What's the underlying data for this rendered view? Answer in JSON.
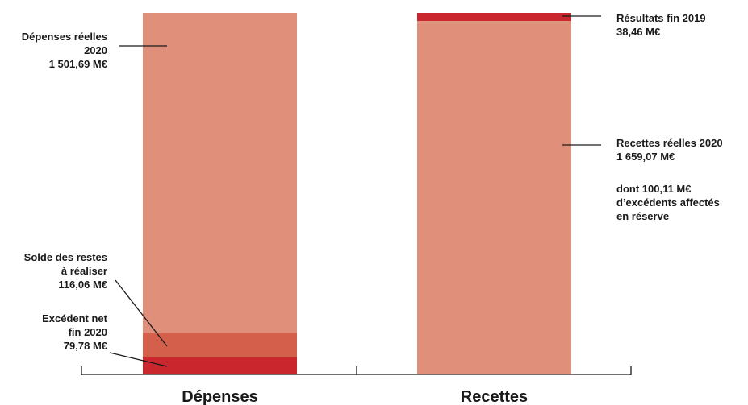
{
  "chart_data": {
    "type": "stacked-bar",
    "unit": "M€",
    "categories": [
      "Dépenses",
      "Recettes"
    ],
    "columns": [
      {
        "category": "Dépenses",
        "segments": [
          {
            "key": "depenses_reelles",
            "value": 1501.69,
            "color": "#e0907a",
            "label": [
              "Dépenses réelles",
              "2020",
              "1 501,69 M€"
            ]
          },
          {
            "key": "solde_restes",
            "value": 116.06,
            "color": "#d4604c",
            "label": [
              "Solde des restes",
              "à réaliser",
              "116,06 M€"
            ]
          },
          {
            "key": "excedent_net",
            "value": 79.78,
            "color": "#c9262d",
            "label": [
              "Excédent net",
              "fin 2020",
              "79,78 M€"
            ]
          }
        ]
      },
      {
        "category": "Recettes",
        "segments": [
          {
            "key": "resultats_2019",
            "value": 38.46,
            "color": "#c9262d",
            "label": [
              "Résultats fin 2019",
              "38,46 M€"
            ]
          },
          {
            "key": "recettes_reelles",
            "value": 1659.07,
            "color": "#e0907a",
            "label": [
              "Recettes réelles 2020",
              "1 659,07 M€"
            ]
          }
        ]
      }
    ],
    "annotation": [
      "dont 100,11 M€",
      "d’excédents affectés",
      "en réserve"
    ]
  }
}
